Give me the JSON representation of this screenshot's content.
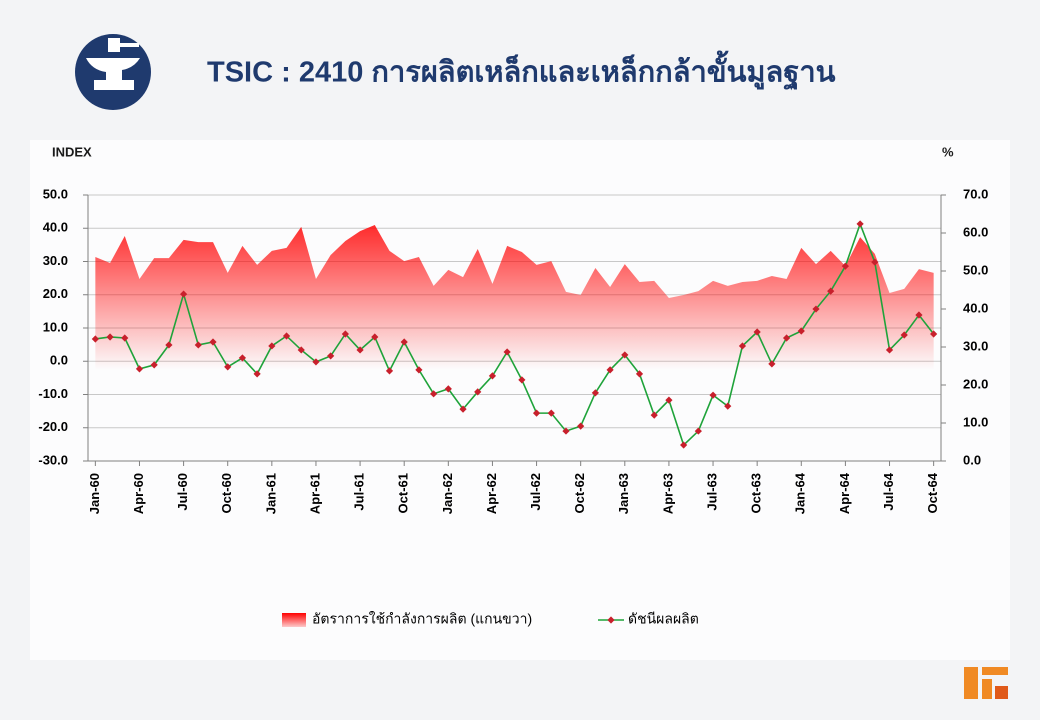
{
  "chart_data": {
    "type": "line",
    "title": "TSIC : 2410 การผลิตเหล็กและเหล็กกล้าขั้นมูลฐาน",
    "y_label": "INDEX",
    "y2_label": "%",
    "categories": [
      "Jan-60",
      null,
      null,
      "Apr-60",
      null,
      null,
      "Jul-60",
      null,
      null,
      "Oct-60",
      null,
      null,
      "Jan-61",
      null,
      null,
      "Apr-61",
      null,
      null,
      "Jul-61",
      null,
      null,
      "Oct-61",
      null,
      null,
      "Jan-62",
      null,
      null,
      "Apr-62",
      null,
      null,
      "Jul-62",
      null,
      null,
      "Oct-62",
      null,
      null,
      "Jan-63",
      null,
      null,
      "Apr-63",
      null,
      null,
      "Jul-63",
      null,
      null,
      "Oct-63",
      null,
      null,
      "Jan-64",
      null,
      null,
      "Apr-64",
      null,
      null,
      "Jul-64",
      null,
      null,
      "Oct-64"
    ],
    "series": [
      {
        "name": "อัตราการใช้กำลังการผลิต (แกนขวา)",
        "type": "area",
        "axis": "y2",
        "color": "#ff0000",
        "values": [
          53.7,
          52.1,
          59.2,
          47.9,
          53.4,
          53.4,
          58.2,
          57.6,
          57.6,
          49.5,
          56.6,
          51.6,
          55.3,
          56.1,
          61.6,
          47.9,
          54.2,
          57.9,
          60.5,
          62.1,
          55.3,
          52.6,
          53.7,
          46.1,
          50.3,
          48.4,
          55.8,
          46.6,
          56.6,
          55.0,
          51.6,
          52.6,
          44.5,
          43.7,
          50.8,
          45.8,
          51.8,
          47.1,
          47.4,
          42.9,
          43.7,
          44.7,
          47.4,
          46.1,
          47.1,
          47.4,
          48.7,
          47.9,
          56.1,
          51.8,
          55.3,
          51.3,
          58.9,
          54.5,
          44.2,
          45.3,
          50.5,
          49.5
        ]
      },
      {
        "name": "ดัชนีผลผลิต",
        "type": "line",
        "color": "#1fa33a",
        "marker_color": "#c8202c",
        "values": [
          6.7,
          7.3,
          7.0,
          -2.3,
          -1.1,
          4.9,
          20.2,
          4.9,
          5.8,
          -1.7,
          1.0,
          -3.8,
          4.6,
          7.6,
          3.4,
          -0.2,
          1.6,
          8.2,
          3.4,
          7.3,
          -2.9,
          5.8,
          -2.6,
          -9.8,
          -8.3,
          -14.4,
          -9.2,
          -4.4,
          2.8,
          -5.6,
          -15.6,
          -15.6,
          -21.0,
          -19.5,
          -9.5,
          -2.6,
          1.9,
          -3.8,
          -16.2,
          -11.7,
          -25.2,
          -21.0,
          -10.2,
          -13.5,
          4.6,
          8.8,
          -0.8,
          7.0,
          9.1,
          15.7,
          21.1,
          28.6,
          41.3,
          29.8,
          3.4,
          7.9,
          13.9,
          8.2
        ]
      }
    ],
    "ylim": [
      -30,
      50
    ],
    "yticks": [
      {
        "value": -30,
        "label": "-30.0"
      },
      {
        "value": -20,
        "label": "-20.0"
      },
      {
        "value": -10,
        "label": "-10.0"
      },
      {
        "value": 0,
        "label": "0.0"
      },
      {
        "value": 10,
        "label": "10.0"
      },
      {
        "value": 20,
        "label": "20.0"
      },
      {
        "value": 30,
        "label": "30.0"
      },
      {
        "value": 40,
        "label": "40.0"
      },
      {
        "value": 50,
        "label": "50.0"
      }
    ],
    "y2lim": [
      0,
      70
    ],
    "y2ticks": [
      {
        "value": 0,
        "label": "0.0"
      },
      {
        "value": 10,
        "label": "10.0"
      },
      {
        "value": 20,
        "label": "20.0"
      },
      {
        "value": 30,
        "label": "30.0"
      },
      {
        "value": 40,
        "label": "40.0"
      },
      {
        "value": 50,
        "label": "50.0"
      },
      {
        "value": 60,
        "label": "60.0"
      },
      {
        "value": 70,
        "label": "70.0"
      }
    ],
    "grid": true
  }
}
